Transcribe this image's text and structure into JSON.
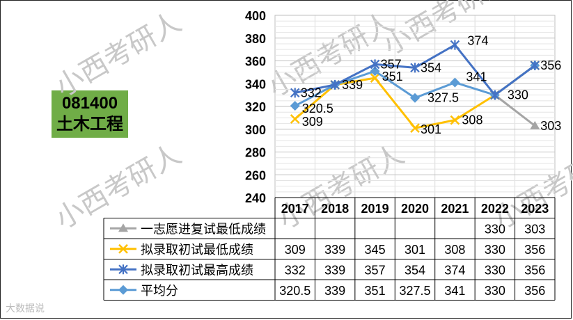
{
  "major": {
    "code": "081400",
    "name": "土木工程"
  },
  "watermark": "小西考研人",
  "footer_watermark": "大数据说",
  "chart_data": {
    "type": "line",
    "categories": [
      "2017",
      "2018",
      "2019",
      "2020",
      "2021",
      "2022",
      "2023"
    ],
    "ylim": [
      240,
      400
    ],
    "yticks": [
      240,
      260,
      280,
      300,
      320,
      340,
      360,
      380,
      400
    ],
    "grid": true,
    "legend": "bottom-table",
    "series": [
      {
        "name": "一志愿进复试最低成绩",
        "color": "#a5a5a5",
        "marker": "triangle",
        "values": [
          null,
          null,
          null,
          null,
          null,
          330,
          303
        ],
        "labels": [
          "",
          "",
          "",
          "",
          "",
          "330",
          "303"
        ]
      },
      {
        "name": "拟录取初试最低成绩",
        "color": "#ffc000",
        "marker": "x",
        "values": [
          309,
          339,
          345,
          301,
          308,
          330,
          356
        ],
        "labels": [
          "309",
          "339",
          "345",
          "301",
          "308",
          "330",
          "356"
        ]
      },
      {
        "name": "拟录取初试最高成绩",
        "color": "#4472c4",
        "marker": "star",
        "values": [
          332,
          339,
          357,
          354,
          374,
          330,
          356
        ],
        "labels": [
          "332",
          "339",
          "357",
          "354",
          "374",
          "330",
          "356"
        ]
      },
      {
        "name": "平均分",
        "color": "#5b9bd5",
        "marker": "diamond",
        "values": [
          320.5,
          339,
          351,
          327.5,
          341,
          330,
          356
        ],
        "labels": [
          "320.5",
          "339",
          "351",
          "327.5",
          "341",
          "330",
          "356"
        ]
      }
    ]
  }
}
